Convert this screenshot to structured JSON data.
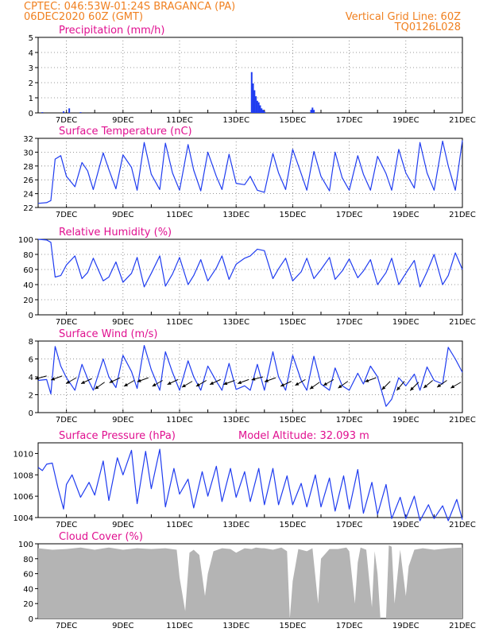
{
  "header": {
    "line1": "CPTEC:   046:53W-01:24S   BRAGANCA (PA)",
    "line2": "06DEC2020 60Z (GMT)",
    "grid_note": "Vertical Grid Line: 60Z",
    "code": "TQ0126L028"
  },
  "colors": {
    "header": "#f08020",
    "title": "#e01090",
    "line": "#1f3cf0",
    "cloud": "#b4b4b4",
    "arrow": "#000000"
  },
  "chart_data": [
    {
      "id": "precip",
      "type": "bar",
      "title": "Precipitation (mm/h)",
      "xlabel": "",
      "ylabel": "",
      "ylim": [
        0,
        5
      ],
      "yticks": [
        "0",
        "1",
        "2",
        "3",
        "4",
        "5"
      ],
      "xticks": [
        "7DEC",
        "9DEC",
        "11DEC",
        "13DEC",
        "15DEC",
        "17DEC",
        "19DEC",
        "21DEC"
      ],
      "grid": true,
      "x_day": [
        6.15,
        6.9,
        7.1,
        7.5,
        13.55,
        13.6,
        13.65,
        13.7,
        13.75,
        13.8,
        13.85,
        13.9,
        13.95,
        14.0,
        15.65,
        15.7,
        15.75
      ],
      "values": [
        0.05,
        0.1,
        0.3,
        0.05,
        2.7,
        1.95,
        1.5,
        1.1,
        0.8,
        0.7,
        0.5,
        0.3,
        0.2,
        0.1,
        0.2,
        0.35,
        0.2
      ]
    },
    {
      "id": "temperature",
      "type": "line",
      "title": "Surface Temperature (nC)",
      "xlabel": "",
      "ylabel": "",
      "ylim": [
        22,
        32
      ],
      "yticks": [
        "22",
        "24",
        "26",
        "28",
        "30",
        "32"
      ],
      "xticks": [
        "7DEC",
        "9DEC",
        "11DEC",
        "13DEC",
        "15DEC",
        "17DEC",
        "19DEC",
        "21DEC"
      ],
      "grid": true,
      "x_day": [
        6.0,
        6.3,
        6.45,
        6.6,
        6.8,
        7.0,
        7.3,
        7.55,
        7.75,
        7.95,
        8.3,
        8.5,
        8.75,
        9.0,
        9.3,
        9.5,
        9.75,
        10.0,
        10.3,
        10.5,
        10.75,
        11.0,
        11.3,
        11.5,
        11.75,
        12.0,
        12.3,
        12.5,
        12.75,
        13.0,
        13.3,
        13.5,
        13.75,
        14.0,
        14.3,
        14.5,
        14.75,
        15.0,
        15.3,
        15.5,
        15.75,
        16.0,
        16.3,
        16.5,
        16.75,
        17.0,
        17.3,
        17.5,
        17.75,
        18.0,
        18.3,
        18.5,
        18.75,
        19.0,
        19.3,
        19.5,
        19.75,
        20.0,
        20.3,
        20.5,
        20.75,
        21.0
      ],
      "values": [
        22.6,
        22.7,
        23.0,
        29.0,
        29.5,
        26.5,
        25.0,
        28.5,
        27.3,
        24.6,
        29.9,
        27.5,
        24.7,
        29.6,
        27.8,
        24.5,
        31.4,
        26.8,
        24.6,
        31.3,
        27.0,
        24.5,
        31.1,
        27.4,
        24.4,
        30.0,
        26.5,
        24.6,
        29.7,
        25.5,
        25.3,
        26.5,
        24.5,
        24.2,
        29.8,
        27.0,
        24.6,
        30.4,
        26.9,
        24.5,
        30.1,
        26.5,
        24.4,
        30.0,
        26.3,
        24.5,
        29.5,
        26.8,
        24.5,
        29.4,
        26.9,
        24.5,
        30.4,
        27.0,
        24.8,
        31.4,
        27.0,
        24.5,
        31.6,
        28.0,
        24.5,
        31.7
      ]
    },
    {
      "id": "humidity",
      "type": "line",
      "title": "Relative Humidity (%)",
      "xlabel": "",
      "ylabel": "",
      "ylim": [
        0,
        100
      ],
      "yticks": [
        "0",
        "20",
        "40",
        "60",
        "80",
        "100"
      ],
      "xticks": [
        "7DEC",
        "9DEC",
        "11DEC",
        "13DEC",
        "15DEC",
        "17DEC",
        "19DEC",
        "21DEC"
      ],
      "grid": true,
      "x_day": [
        6.0,
        6.3,
        6.45,
        6.6,
        6.8,
        7.0,
        7.3,
        7.55,
        7.75,
        7.95,
        8.3,
        8.5,
        8.75,
        9.0,
        9.3,
        9.5,
        9.75,
        10.0,
        10.3,
        10.5,
        10.75,
        11.0,
        11.3,
        11.5,
        11.75,
        12.0,
        12.3,
        12.5,
        12.75,
        13.0,
        13.3,
        13.5,
        13.75,
        14.0,
        14.3,
        14.5,
        14.75,
        15.0,
        15.3,
        15.5,
        15.75,
        16.0,
        16.3,
        16.5,
        16.75,
        17.0,
        17.3,
        17.5,
        17.75,
        18.0,
        18.3,
        18.5,
        18.75,
        19.0,
        19.3,
        19.5,
        19.75,
        20.0,
        20.3,
        20.5,
        20.75,
        21.0
      ],
      "values": [
        100,
        99,
        96,
        50,
        52,
        66,
        78,
        48,
        56,
        75,
        45,
        50,
        70,
        43,
        55,
        76,
        37,
        55,
        78,
        38,
        54,
        76,
        40,
        52,
        73,
        45,
        62,
        78,
        47,
        67,
        75,
        78,
        87,
        85,
        48,
        61,
        75,
        45,
        57,
        75,
        48,
        60,
        76,
        47,
        58,
        74,
        49,
        58,
        73,
        40,
        56,
        75,
        40,
        55,
        72,
        37,
        57,
        80,
        40,
        52,
        82,
        60
      ]
    },
    {
      "id": "wind",
      "type": "line",
      "title": "Surface Wind (m/s)",
      "xlabel": "",
      "ylabel": "",
      "ylim": [
        0,
        8
      ],
      "yticks": [
        "0",
        "2",
        "4",
        "6",
        "8"
      ],
      "xticks": [
        "7DEC",
        "9DEC",
        "11DEC",
        "13DEC",
        "15DEC",
        "17DEC",
        "19DEC",
        "21DEC"
      ],
      "grid": true,
      "x_day": [
        6.0,
        6.3,
        6.45,
        6.6,
        6.8,
        7.0,
        7.3,
        7.55,
        7.75,
        7.95,
        8.3,
        8.5,
        8.75,
        9.0,
        9.3,
        9.5,
        9.75,
        10.0,
        10.3,
        10.5,
        10.75,
        11.0,
        11.3,
        11.5,
        11.75,
        12.0,
        12.3,
        12.5,
        12.75,
        13.0,
        13.3,
        13.5,
        13.75,
        14.0,
        14.3,
        14.5,
        14.75,
        15.0,
        15.3,
        15.5,
        15.75,
        16.0,
        16.3,
        16.5,
        16.75,
        17.0,
        17.3,
        17.5,
        17.75,
        18.0,
        18.3,
        18.5,
        18.75,
        19.0,
        19.3,
        19.5,
        19.75,
        20.0,
        20.3,
        20.5,
        20.75,
        21.0
      ],
      "values": [
        3.6,
        3.7,
        2.1,
        7.4,
        5.2,
        3.9,
        2.5,
        5.4,
        3.8,
        2.5,
        6.0,
        4.0,
        2.8,
        6.4,
        4.6,
        2.7,
        7.5,
        4.8,
        2.5,
        6.8,
        4.5,
        2.5,
        5.8,
        4.0,
        2.5,
        5.2,
        3.5,
        2.5,
        5.5,
        2.6,
        3.0,
        2.5,
        5.4,
        2.5,
        6.8,
        4.0,
        2.5,
        6.4,
        3.6,
        2.5,
        6.3,
        3.2,
        2.5,
        5.0,
        3.0,
        2.5,
        4.4,
        3.2,
        5.2,
        4.0,
        0.7,
        1.5,
        3.9,
        3.0,
        4.3,
        2.5,
        5.1,
        3.6,
        3.2,
        7.3,
        6.0,
        4.5
      ],
      "arrow_x_day": [
        6.3,
        6.85,
        7.35,
        7.9,
        8.35,
        8.9,
        9.4,
        9.9,
        10.4,
        10.95,
        11.45,
        11.95,
        12.45,
        12.95,
        13.45,
        13.95,
        14.4,
        14.95,
        15.45,
        15.95,
        16.45,
        16.95,
        17.95,
        18.45,
        18.95,
        19.45,
        19.95,
        20.45,
        20.95
      ],
      "arrow_y": [
        4.1,
        4.1,
        3.9,
        3.8,
        3.4,
        3.9,
        3.6,
        3.9,
        3.6,
        3.7,
        3.5,
        3.6,
        3.7,
        3.6,
        3.7,
        4.0,
        3.9,
        3.5,
        3.7,
        3.4,
        3.7,
        3.5,
        3.9,
        3.5,
        3.5,
        3.4,
        3.6,
        3.6,
        3.4
      ],
      "arrow_dir_deg": [
        195,
        200,
        210,
        205,
        215,
        205,
        210,
        200,
        210,
        205,
        210,
        210,
        205,
        200,
        200,
        195,
        200,
        205,
        210,
        215,
        210,
        215,
        200,
        225,
        230,
        225,
        220,
        215,
        210
      ]
    },
    {
      "id": "pressure",
      "type": "line",
      "title": "Surface Pressure (hPa)",
      "annotation": "Model Altitude: 32.093 m",
      "xlabel": "",
      "ylabel": "",
      "ylim": [
        1004,
        1011
      ],
      "yticks": [
        "1004",
        "1006",
        "1008",
        "1010"
      ],
      "xticks": [
        "7DEC",
        "9DEC",
        "11DEC",
        "13DEC",
        "15DEC",
        "17DEC",
        "19DEC",
        "21DEC"
      ],
      "grid": false,
      "x_day": [
        6.0,
        6.15,
        6.3,
        6.5,
        6.7,
        6.9,
        7.0,
        7.2,
        7.5,
        7.8,
        8.0,
        8.3,
        8.5,
        8.8,
        9.0,
        9.3,
        9.5,
        9.8,
        10.0,
        10.3,
        10.5,
        10.8,
        11.0,
        11.3,
        11.5,
        11.8,
        12.0,
        12.3,
        12.5,
        12.8,
        13.0,
        13.3,
        13.5,
        13.8,
        14.0,
        14.3,
        14.5,
        14.8,
        15.0,
        15.3,
        15.5,
        15.8,
        16.0,
        16.3,
        16.5,
        16.8,
        17.0,
        17.3,
        17.5,
        17.8,
        18.0,
        18.3,
        18.5,
        18.8,
        19.0,
        19.3,
        19.5,
        19.8,
        20.0,
        20.3,
        20.5,
        20.8,
        21.0
      ],
      "values": [
        1008.7,
        1008.4,
        1009.0,
        1009.1,
        1006.8,
        1004.8,
        1007.1,
        1008.0,
        1005.9,
        1007.3,
        1006.1,
        1009.3,
        1005.6,
        1009.6,
        1008.0,
        1010.3,
        1005.3,
        1010.2,
        1006.7,
        1010.4,
        1005.0,
        1008.6,
        1006.2,
        1007.6,
        1004.9,
        1008.3,
        1006.0,
        1008.8,
        1005.5,
        1008.6,
        1005.9,
        1008.3,
        1005.5,
        1008.6,
        1005.2,
        1008.6,
        1005.2,
        1007.9,
        1005.2,
        1007.2,
        1005.0,
        1008.0,
        1005.0,
        1007.7,
        1004.6,
        1007.9,
        1004.8,
        1008.5,
        1004.4,
        1007.3,
        1004.3,
        1007.1,
        1003.9,
        1005.9,
        1003.9,
        1006.0,
        1003.7,
        1005.2,
        1003.9,
        1005.1,
        1003.7,
        1005.7,
        1003.8
      ]
    },
    {
      "id": "cloud",
      "type": "area",
      "title": "Cloud Cover (%)",
      "xlabel": "",
      "ylabel": "",
      "ylim": [
        0,
        100
      ],
      "yticks": [
        "0",
        "20",
        "40",
        "60",
        "80",
        "100"
      ],
      "xticks": [
        "7DEC",
        "9DEC",
        "11DEC",
        "13DEC",
        "15DEC",
        "17DEC",
        "19DEC",
        "21DEC"
      ],
      "grid": false,
      "x_day": [
        6.0,
        6.5,
        7.0,
        7.5,
        8.0,
        8.5,
        9.0,
        9.5,
        10.0,
        10.5,
        10.9,
        11.0,
        11.2,
        11.35,
        11.5,
        11.7,
        11.9,
        12.0,
        12.2,
        12.5,
        12.8,
        13.0,
        13.3,
        13.55,
        13.7,
        13.9,
        14.0,
        14.3,
        14.6,
        14.8,
        14.9,
        15.0,
        15.2,
        15.5,
        15.7,
        15.9,
        16.0,
        16.3,
        16.6,
        16.9,
        17.0,
        17.2,
        17.3,
        17.4,
        17.6,
        17.8,
        17.9,
        18.0,
        18.1,
        18.15,
        18.3,
        18.4,
        18.5,
        18.6,
        18.8,
        19.0,
        19.1,
        19.3,
        19.6,
        20.0,
        20.5,
        21.0
      ],
      "values": [
        94,
        92,
        93,
        95,
        92,
        95,
        92,
        94,
        93,
        94,
        92,
        55,
        10,
        88,
        92,
        85,
        30,
        60,
        90,
        94,
        93,
        88,
        94,
        93,
        95,
        94,
        94,
        92,
        95,
        90,
        0,
        50,
        93,
        90,
        94,
        20,
        80,
        93,
        93,
        95,
        90,
        20,
        75,
        95,
        92,
        15,
        90,
        60,
        0,
        0,
        0,
        98,
        96,
        20,
        92,
        30,
        70,
        92,
        94,
        92,
        94,
        95
      ]
    }
  ]
}
